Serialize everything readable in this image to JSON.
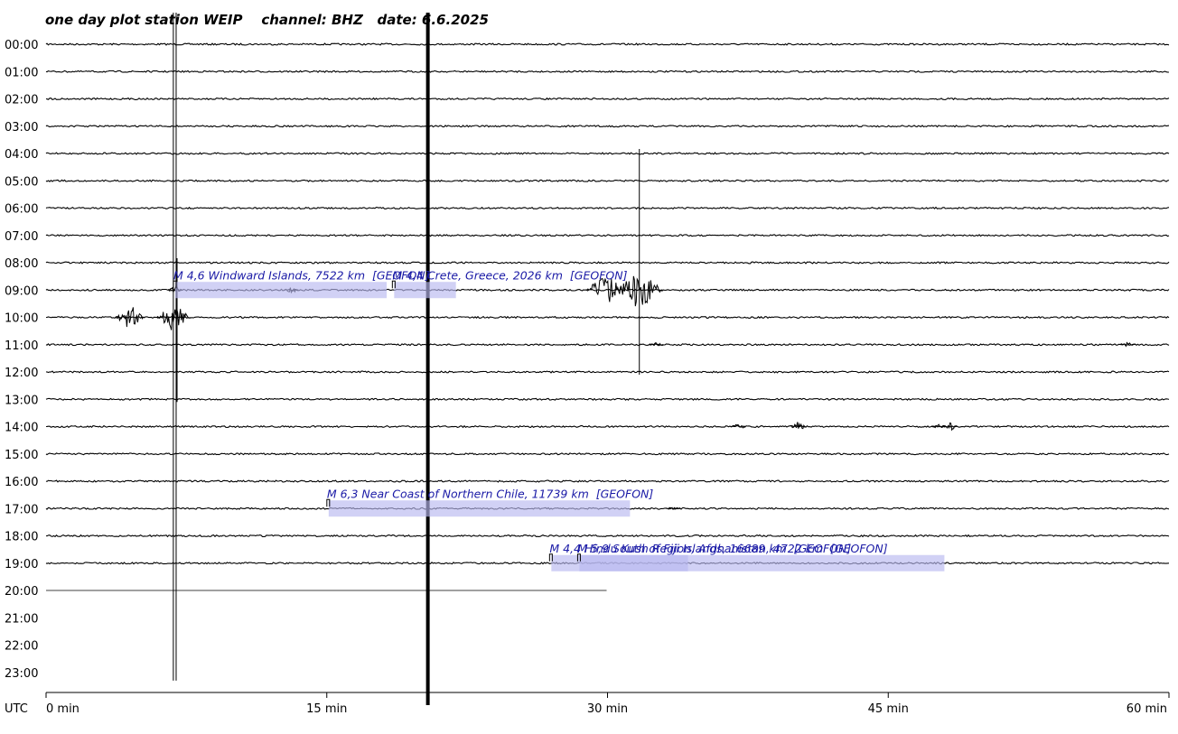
{
  "chart_data": {
    "type": "line",
    "title": {
      "prefix": "one day plot station",
      "station": "WEIP",
      "channel_label": "channel:",
      "channel": "BHZ",
      "date_label": "date:",
      "date": "6.6.2025"
    },
    "y_axis": {
      "rows": [
        "00:00",
        "01:00",
        "02:00",
        "03:00",
        "04:00",
        "05:00",
        "06:00",
        "07:00",
        "08:00",
        "09:00",
        "10:00",
        "11:00",
        "12:00",
        "13:00",
        "14:00",
        "15:00",
        "16:00",
        "17:00",
        "18:00",
        "19:00",
        "20:00",
        "21:00",
        "22:00",
        "23:00"
      ]
    },
    "x_axis": {
      "unit_label": "UTC",
      "range_min": [
        0,
        60
      ],
      "ticks": [
        {
          "value": 0,
          "label": "0 min"
        },
        {
          "value": 15,
          "label": "15 min"
        },
        {
          "value": 30,
          "label": "30 min"
        },
        {
          "value": 45,
          "label": "45 min"
        },
        {
          "value": 60,
          "label": "60 min"
        }
      ]
    },
    "data_end": {
      "hour": 20,
      "minute": 30
    },
    "events": [
      {
        "text": "M 4,6 Windward Islands, 7522 km  [GEOFON]",
        "hour": 9,
        "start_min": 6.9,
        "end_min": 18.2
      },
      {
        "text": "M 4,4 Crete, Greece, 2026 km  [GEOFON]",
        "hour": 9,
        "start_min": 18.6,
        "end_min": 21.9
      },
      {
        "text": "M 6,3 Near Coast of Northern Chile, 11739 km  [GEOFON]",
        "hour": 17,
        "start_min": 15.1,
        "end_min": 31.2
      },
      {
        "text": "M 4,4 Hindu Kush Region, Afghanistan, 4722 km  [GEOFON]",
        "hour": 19,
        "start_min": 27.0,
        "end_min": 34.3
      },
      {
        "text": "M 5,9 South of Fiji Islands, 16689 km  [GEOFON]",
        "hour": 19,
        "start_min": 28.5,
        "end_min": 48.0
      }
    ],
    "bursts": [
      {
        "hour": 9,
        "minute": 6.9,
        "amp": 6
      },
      {
        "hour": 9,
        "minute": 13.1,
        "amp": 4
      },
      {
        "hour": 9,
        "minute": 29.9,
        "amp": 18
      },
      {
        "hour": 9,
        "minute": 31.7,
        "amp": 22
      },
      {
        "hour": 10,
        "minute": 4.5,
        "amp": 14
      },
      {
        "hour": 10,
        "minute": 6.8,
        "amp": 16
      },
      {
        "hour": 11,
        "minute": 32.6,
        "amp": 3
      },
      {
        "hour": 11,
        "minute": 57.8,
        "amp": 4
      },
      {
        "hour": 14,
        "minute": 37.0,
        "amp": 4
      },
      {
        "hour": 14,
        "minute": 40.2,
        "amp": 6
      },
      {
        "hour": 14,
        "minute": 47.7,
        "amp": 3
      },
      {
        "hour": 14,
        "minute": 48.3,
        "amp": 5
      },
      {
        "hour": 17,
        "minute": 33.5,
        "amp": 2
      }
    ],
    "spikes": [
      {
        "minute": 6.8,
        "from_hour": 0,
        "to_hour": 23.3
      },
      {
        "minute": 6.95,
        "from_hour": 0,
        "to_hour": 23.3
      },
      {
        "minute": 20.4,
        "from_hour": 0,
        "to_hour": 24.2
      },
      {
        "minute": 31.7,
        "from_hour": 4,
        "to_hour": 12.1
      },
      {
        "minute": 7.0,
        "from_hour": 8,
        "to_hour": 13.1
      }
    ],
    "colors": {
      "trace": "#000000",
      "event_text": "#1a1aa6",
      "event_box": "#b9b9f0"
    },
    "grid": false
  }
}
